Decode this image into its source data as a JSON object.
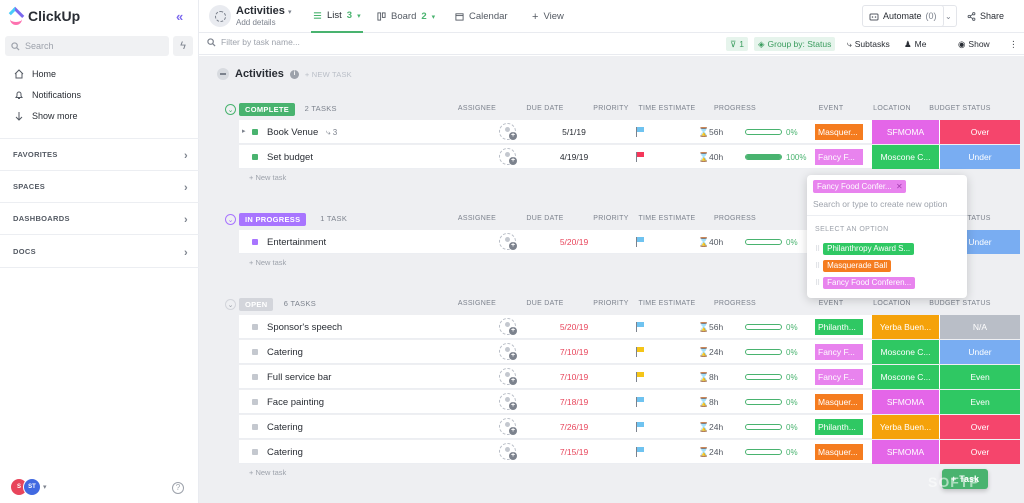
{
  "app": {
    "name": "ClickUp"
  },
  "sidebar": {
    "search_placeholder": "Search",
    "nav": [
      {
        "label": "Home"
      },
      {
        "label": "Notifications"
      },
      {
        "label": "Show more"
      }
    ],
    "sections": [
      {
        "label": "FAVORITES"
      },
      {
        "label": "SPACES"
      },
      {
        "label": "DASHBOARDS"
      },
      {
        "label": "DOCS"
      }
    ],
    "avatars": [
      {
        "initials": "S",
        "color": "#e8455b"
      },
      {
        "initials": "ST",
        "color": "#4169e1"
      }
    ],
    "help": "?"
  },
  "header": {
    "title": "Activities",
    "subtitle": "Add details",
    "views": [
      {
        "label": "List",
        "count": "3"
      },
      {
        "label": "Board",
        "count": "2"
      },
      {
        "label": "Calendar"
      },
      {
        "label": "View"
      }
    ],
    "automate_label": "Automate",
    "automate_count": "(0)",
    "share_label": "Share"
  },
  "filterbar": {
    "placeholder": "Filter by task name...",
    "filter_count": "1",
    "group_by": "Group by: Status",
    "subtasks": "Subtasks",
    "me": "Me",
    "show": "Show"
  },
  "list": {
    "title": "Activities",
    "new_task_top": "+ NEW TASK",
    "new_task": "+ New task",
    "columns": [
      "ASSIGNEE",
      "DUE DATE",
      "PRIORITY",
      "TIME ESTIMATE",
      "PROGRESS",
      "EVENT",
      "LOCATION",
      "BUDGET STATUS"
    ],
    "groups": [
      {
        "status": "COMPLETE",
        "count": "2 TASKS",
        "color": "#49b36f",
        "tasks": [
          {
            "name": "Book Venue",
            "subtasks": "3",
            "due": "5/1/19",
            "due_color": "#292d34",
            "flag": "#6fc3f0",
            "estimate": "56h",
            "progress": 0,
            "pct": "0%",
            "event": "Masquer...",
            "event_color": "#f57c1f",
            "location": "SFMOMA",
            "location_color": "#e466e8",
            "budget": "Over",
            "budget_color": "#f5456c"
          },
          {
            "name": "Set budget",
            "due": "4/19/19",
            "due_color": "#292d34",
            "flag": "#f5365a",
            "estimate": "40h",
            "progress": 100,
            "pct": "100%",
            "event": "Fancy F...",
            "event_color": "#e883ee",
            "location": "Moscone C...",
            "location_color": "#2fc863",
            "budget": "Under",
            "budget_color": "#79adf2"
          }
        ]
      },
      {
        "status": "IN PROGRESS",
        "count": "1 TASK",
        "color": "#a875ff",
        "tasks": [
          {
            "name": "Entertainment",
            "due": "5/20/19",
            "due_color": "#e8455b",
            "flag": "#6fc3f0",
            "estimate": "40h",
            "progress": 0,
            "pct": "0%",
            "event": "",
            "event_color": "",
            "location": "",
            "location_color": "",
            "budget": "Under",
            "budget_color": "#79adf2"
          }
        ]
      },
      {
        "status": "OPEN",
        "count": "6 TASKS",
        "color": "#d3d5db",
        "tasks": [
          {
            "name": "Sponsor's speech",
            "due": "5/20/19",
            "due_color": "#e8455b",
            "flag": "#6fc3f0",
            "estimate": "56h",
            "progress": 0,
            "pct": "0%",
            "event": "Philanth...",
            "event_color": "#2fc863",
            "location": "Yerba Buen...",
            "location_color": "#f5a20a",
            "budget": "N/A",
            "budget_color": "#b9bec7"
          },
          {
            "name": "Catering",
            "due": "7/10/19",
            "due_color": "#e8455b",
            "flag": "#f5c518",
            "estimate": "24h",
            "progress": 0,
            "pct": "0%",
            "event": "Fancy F...",
            "event_color": "#e883ee",
            "location": "Moscone C...",
            "location_color": "#2fc863",
            "budget": "Under",
            "budget_color": "#79adf2"
          },
          {
            "name": "Full service bar",
            "due": "7/10/19",
            "due_color": "#e8455b",
            "flag": "#f5c518",
            "estimate": "8h",
            "progress": 0,
            "pct": "0%",
            "event": "Fancy F...",
            "event_color": "#e883ee",
            "location": "Moscone C...",
            "location_color": "#2fc863",
            "budget": "Even",
            "budget_color": "#2fc863"
          },
          {
            "name": "Face painting",
            "due": "7/18/19",
            "due_color": "#e8455b",
            "flag": "#6fc3f0",
            "estimate": "8h",
            "progress": 0,
            "pct": "0%",
            "event": "Masquer...",
            "event_color": "#f57c1f",
            "location": "SFMOMA",
            "location_color": "#e466e8",
            "budget": "Even",
            "budget_color": "#2fc863"
          },
          {
            "name": "Catering",
            "due": "7/26/19",
            "due_color": "#e8455b",
            "flag": "#6fc3f0",
            "estimate": "24h",
            "progress": 0,
            "pct": "0%",
            "event": "Philanth...",
            "event_color": "#2fc863",
            "location": "Yerba Buen...",
            "location_color": "#f5a20a",
            "budget": "Over",
            "budget_color": "#f5456c"
          },
          {
            "name": "Catering",
            "due": "7/15/19",
            "due_color": "#e8455b",
            "flag": "#6fc3f0",
            "estimate": "24h",
            "progress": 0,
            "pct": "0%",
            "event": "Masquer...",
            "event_color": "#f57c1f",
            "location": "SFMOMA",
            "location_color": "#e466e8",
            "budget": "Over",
            "budget_color": "#f5456c"
          }
        ]
      }
    ]
  },
  "dropdown": {
    "selected": "Fancy Food Confer...",
    "selected_color": "#e883ee",
    "placeholder": "Search or type to create new option",
    "section_label": "SELECT AN OPTION",
    "options": [
      {
        "label": "Philanthropy Award S...",
        "color": "#2fc863"
      },
      {
        "label": "Masquerade Ball",
        "color": "#f57c1f"
      },
      {
        "label": "Fancy Food Conferen...",
        "color": "#e883ee"
      }
    ]
  },
  "task_button": "Task",
  "watermark": "SOFTP"
}
